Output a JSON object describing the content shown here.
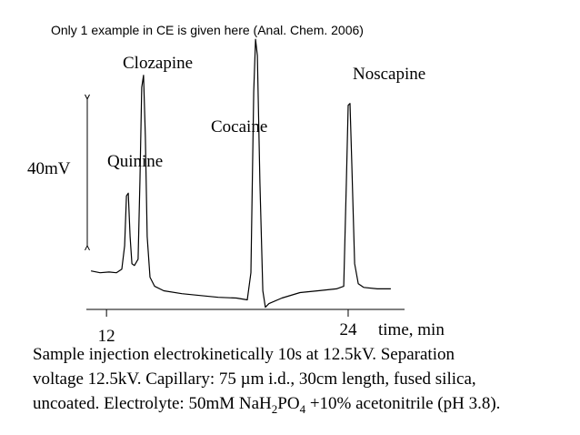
{
  "chart_data": {
    "type": "line",
    "title": "Only 1 example in CE is given here (Anal. Chem. 2006)",
    "xlabel": "time, min",
    "x": [
      11.23,
      11.68,
      12.13,
      12.49,
      12.76,
      12.9,
      12.99,
      13.08,
      13.17,
      13.26,
      13.39,
      13.57,
      13.66,
      13.75,
      13.84,
      13.93,
      14.02,
      14.16,
      14.39,
      14.84,
      15.74,
      16.64,
      17.55,
      18.45,
      18.99,
      19.17,
      19.31,
      19.4,
      19.49,
      19.62,
      19.76,
      19.89,
      20.07,
      20.71,
      21.61,
      22.51,
      23.42,
      23.78,
      23.91,
      24.0,
      24.09,
      24.18,
      24.32,
      24.5,
      24.77,
      25.45,
      26.12
    ],
    "series": [
      {
        "color": "#000000",
        "values": [
          0.5,
          0,
          0.2,
          0,
          1.0,
          7.4,
          21.0,
          21.7,
          9.9,
          2.5,
          2.0,
          3.7,
          24.7,
          50.6,
          53.9,
          37.1,
          9.9,
          -1.2,
          -3.7,
          -4.9,
          -5.7,
          -6.2,
          -6.7,
          -6.9,
          -7.4,
          0,
          49.4,
          63.7,
          59.3,
          24.7,
          -4.9,
          -9.4,
          -8.4,
          -6.9,
          -5.4,
          -4.9,
          -4.4,
          -3.7,
          24.7,
          45.7,
          46.2,
          29.6,
          2.5,
          -3.0,
          -4.0,
          -4.4,
          -4.4
        ]
      }
    ],
    "xlim": [
      11,
      26.8
    ],
    "xticks": [
      12,
      24
    ],
    "ylim": [
      -10,
      64.5
    ],
    "scale_bar": {
      "value": 40,
      "label": "40mV"
    },
    "annotations": [
      "Quinine",
      "Clozapine",
      "Cocaine",
      "Noscapine"
    ],
    "caption": {
      "line1": "Sample injection electrokinetically 10s at 12.5kV. Separation",
      "line2": "voltage 12.5kV. Capillary: 75 µm i.d., 30cm length, fused silica,",
      "line3": [
        "uncoated. Electrolyte: 50mM NaH",
        "2",
        "PO",
        "4",
        " +10% acetonitrile (pH 3.8)."
      ]
    }
  }
}
